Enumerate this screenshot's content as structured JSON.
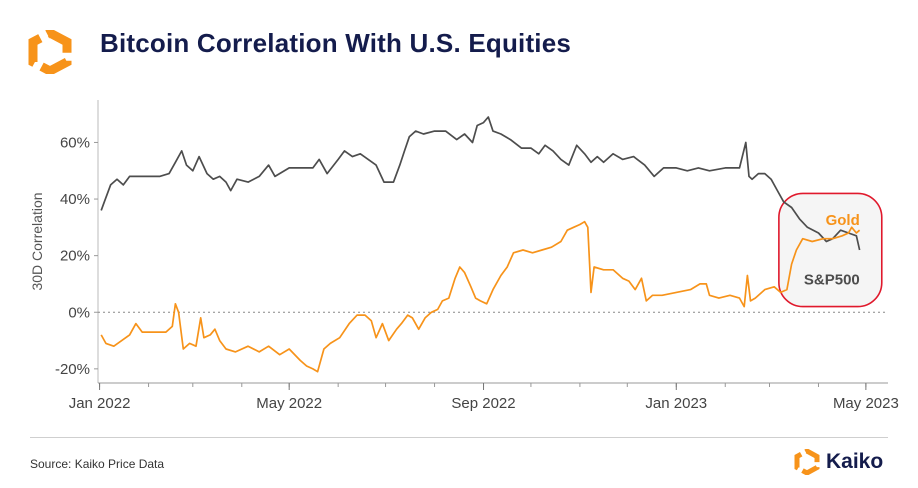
{
  "header": {
    "title": "Bitcoin Correlation With U.S. Equities"
  },
  "footer": {
    "source": "Source: Kaiko Price Data",
    "brand": "Kaiko"
  },
  "colors": {
    "sp500": "#4d4d4d",
    "gold": "#f7931a",
    "highlight": "#e0192c",
    "title": "#141c4c"
  },
  "chart_data": {
    "type": "line",
    "title": "Bitcoin Correlation With U.S. Equities",
    "ylabel": "30D Correlation",
    "xlabel": "",
    "ylim": [
      -25,
      75
    ],
    "xlim": [
      "2021-12-31",
      "2023-05-15"
    ],
    "yticks": [
      -20,
      0,
      20,
      40,
      60
    ],
    "ytick_labels": [
      "-20%",
      "0%",
      "20%",
      "40%",
      "60%"
    ],
    "xticks": [
      "2022-01-01",
      "2022-05-01",
      "2022-09-01",
      "2023-01-01",
      "2023-05-01"
    ],
    "xtick_labels": [
      "Jan 2022",
      "May 2022",
      "Sep 2022",
      "Jan 2023",
      "May 2023"
    ],
    "zero_line": "dotted",
    "series": [
      {
        "name": "S&P500",
        "color": "#4d4d4d",
        "points": [
          [
            "2022-01-02",
            36
          ],
          [
            "2022-01-04",
            39
          ],
          [
            "2022-01-08",
            45
          ],
          [
            "2022-01-12",
            47
          ],
          [
            "2022-01-16",
            45
          ],
          [
            "2022-01-20",
            48
          ],
          [
            "2022-01-25",
            48
          ],
          [
            "2022-02-01",
            48
          ],
          [
            "2022-02-08",
            48
          ],
          [
            "2022-02-14",
            49
          ],
          [
            "2022-02-18",
            53
          ],
          [
            "2022-02-22",
            57
          ],
          [
            "2022-02-25",
            52
          ],
          [
            "2022-03-01",
            50
          ],
          [
            "2022-03-05",
            55
          ],
          [
            "2022-03-10",
            49
          ],
          [
            "2022-03-14",
            47
          ],
          [
            "2022-03-18",
            48
          ],
          [
            "2022-03-22",
            46
          ],
          [
            "2022-03-25",
            43
          ],
          [
            "2022-03-29",
            47
          ],
          [
            "2022-04-05",
            46
          ],
          [
            "2022-04-12",
            48
          ],
          [
            "2022-04-18",
            52
          ],
          [
            "2022-04-22",
            48
          ],
          [
            "2022-05-01",
            51
          ],
          [
            "2022-05-10",
            51
          ],
          [
            "2022-05-16",
            51
          ],
          [
            "2022-05-20",
            54
          ],
          [
            "2022-05-25",
            49
          ],
          [
            "2022-06-01",
            54
          ],
          [
            "2022-06-05",
            57
          ],
          [
            "2022-06-10",
            55
          ],
          [
            "2022-06-15",
            56
          ],
          [
            "2022-06-20",
            54
          ],
          [
            "2022-06-25",
            52
          ],
          [
            "2022-06-30",
            46
          ],
          [
            "2022-07-06",
            46
          ],
          [
            "2022-07-10",
            52
          ],
          [
            "2022-07-13",
            57
          ],
          [
            "2022-07-16",
            62
          ],
          [
            "2022-07-20",
            64
          ],
          [
            "2022-07-25",
            63
          ],
          [
            "2022-08-01",
            64
          ],
          [
            "2022-08-08",
            64
          ],
          [
            "2022-08-15",
            61
          ],
          [
            "2022-08-20",
            63
          ],
          [
            "2022-08-25",
            60
          ],
          [
            "2022-08-28",
            66
          ],
          [
            "2022-09-01",
            67
          ],
          [
            "2022-09-04",
            69
          ],
          [
            "2022-09-07",
            64
          ],
          [
            "2022-09-12",
            63
          ],
          [
            "2022-09-18",
            61
          ],
          [
            "2022-09-25",
            58
          ],
          [
            "2022-10-01",
            58
          ],
          [
            "2022-10-06",
            56
          ],
          [
            "2022-10-10",
            59
          ],
          [
            "2022-10-15",
            57
          ],
          [
            "2022-10-20",
            54
          ],
          [
            "2022-10-25",
            52
          ],
          [
            "2022-10-30",
            59
          ],
          [
            "2022-11-04",
            56
          ],
          [
            "2022-11-08",
            53
          ],
          [
            "2022-11-12",
            55
          ],
          [
            "2022-11-16",
            53
          ],
          [
            "2022-11-22",
            56
          ],
          [
            "2022-11-28",
            54
          ],
          [
            "2022-12-05",
            55
          ],
          [
            "2022-12-12",
            52
          ],
          [
            "2022-12-18",
            48
          ],
          [
            "2022-12-24",
            51
          ],
          [
            "2023-01-01",
            51
          ],
          [
            "2023-01-08",
            50
          ],
          [
            "2023-01-15",
            51
          ],
          [
            "2023-01-22",
            50
          ],
          [
            "2023-02-01",
            51
          ],
          [
            "2023-02-10",
            51
          ],
          [
            "2023-02-14",
            60
          ],
          [
            "2023-02-16",
            48
          ],
          [
            "2023-02-18",
            47
          ],
          [
            "2023-02-22",
            49
          ],
          [
            "2023-02-26",
            49
          ],
          [
            "2023-03-02",
            47
          ],
          [
            "2023-03-06",
            43
          ],
          [
            "2023-03-10",
            39
          ],
          [
            "2023-03-15",
            37
          ],
          [
            "2023-03-20",
            33
          ],
          [
            "2023-03-25",
            30
          ],
          [
            "2023-04-01",
            28
          ],
          [
            "2023-04-06",
            25
          ],
          [
            "2023-04-10",
            26
          ],
          [
            "2023-04-15",
            29
          ],
          [
            "2023-04-20",
            28
          ],
          [
            "2023-04-25",
            27
          ],
          [
            "2023-04-27",
            22
          ]
        ]
      },
      {
        "name": "Gold",
        "color": "#f7931a",
        "points": [
          [
            "2022-01-02",
            -8
          ],
          [
            "2022-01-05",
            -11
          ],
          [
            "2022-01-10",
            -12
          ],
          [
            "2022-01-15",
            -10
          ],
          [
            "2022-01-20",
            -8
          ],
          [
            "2022-01-24",
            -4
          ],
          [
            "2022-01-28",
            -7
          ],
          [
            "2022-02-05",
            -7
          ],
          [
            "2022-02-12",
            -7
          ],
          [
            "2022-02-16",
            -5
          ],
          [
            "2022-02-18",
            3
          ],
          [
            "2022-02-20",
            0
          ],
          [
            "2022-02-23",
            -13
          ],
          [
            "2022-02-27",
            -11
          ],
          [
            "2022-03-03",
            -12
          ],
          [
            "2022-03-06",
            -2
          ],
          [
            "2022-03-08",
            -9
          ],
          [
            "2022-03-12",
            -8
          ],
          [
            "2022-03-15",
            -6
          ],
          [
            "2022-03-18",
            -10
          ],
          [
            "2022-03-22",
            -13
          ],
          [
            "2022-03-28",
            -14
          ],
          [
            "2022-04-05",
            -12
          ],
          [
            "2022-04-12",
            -14
          ],
          [
            "2022-04-18",
            -12
          ],
          [
            "2022-04-25",
            -15
          ],
          [
            "2022-05-01",
            -13
          ],
          [
            "2022-05-08",
            -17
          ],
          [
            "2022-05-12",
            -19
          ],
          [
            "2022-05-16",
            -20
          ],
          [
            "2022-05-19",
            -21
          ],
          [
            "2022-05-23",
            -13
          ],
          [
            "2022-05-27",
            -11
          ],
          [
            "2022-06-02",
            -9
          ],
          [
            "2022-06-08",
            -4
          ],
          [
            "2022-06-13",
            -1
          ],
          [
            "2022-06-18",
            -1
          ],
          [
            "2022-06-22",
            -3
          ],
          [
            "2022-06-25",
            -9
          ],
          [
            "2022-06-29",
            -4
          ],
          [
            "2022-07-03",
            -10
          ],
          [
            "2022-07-08",
            -6
          ],
          [
            "2022-07-11",
            -4
          ],
          [
            "2022-07-15",
            -1
          ],
          [
            "2022-07-18",
            -2
          ],
          [
            "2022-07-22",
            -6
          ],
          [
            "2022-07-26",
            -2
          ],
          [
            "2022-07-30",
            0
          ],
          [
            "2022-08-03",
            1
          ],
          [
            "2022-08-06",
            4
          ],
          [
            "2022-08-10",
            5
          ],
          [
            "2022-08-14",
            12
          ],
          [
            "2022-08-17",
            16
          ],
          [
            "2022-08-20",
            14
          ],
          [
            "2022-08-24",
            9
          ],
          [
            "2022-08-27",
            5
          ],
          [
            "2022-08-30",
            4
          ],
          [
            "2022-09-03",
            3
          ],
          [
            "2022-09-07",
            8
          ],
          [
            "2022-09-12",
            13
          ],
          [
            "2022-09-16",
            16
          ],
          [
            "2022-09-20",
            21
          ],
          [
            "2022-09-26",
            22
          ],
          [
            "2022-10-02",
            21
          ],
          [
            "2022-10-08",
            22
          ],
          [
            "2022-10-14",
            23
          ],
          [
            "2022-10-20",
            25
          ],
          [
            "2022-10-24",
            29
          ],
          [
            "2022-10-28",
            30
          ],
          [
            "2022-11-01",
            31
          ],
          [
            "2022-11-04",
            32
          ],
          [
            "2022-11-06",
            30
          ],
          [
            "2022-11-08",
            7
          ],
          [
            "2022-11-10",
            16
          ],
          [
            "2022-11-16",
            15
          ],
          [
            "2022-11-22",
            15
          ],
          [
            "2022-11-28",
            12
          ],
          [
            "2022-12-02",
            11
          ],
          [
            "2022-12-06",
            8
          ],
          [
            "2022-12-10",
            12
          ],
          [
            "2022-12-13",
            4
          ],
          [
            "2022-12-17",
            6
          ],
          [
            "2022-12-23",
            6
          ],
          [
            "2023-01-01",
            7
          ],
          [
            "2023-01-10",
            8
          ],
          [
            "2023-01-16",
            10
          ],
          [
            "2023-01-20",
            10
          ],
          [
            "2023-01-22",
            6
          ],
          [
            "2023-01-28",
            5
          ],
          [
            "2023-02-04",
            6
          ],
          [
            "2023-02-10",
            5
          ],
          [
            "2023-02-13",
            2
          ],
          [
            "2023-02-15",
            13
          ],
          [
            "2023-02-17",
            4
          ],
          [
            "2023-02-20",
            5
          ],
          [
            "2023-02-26",
            8
          ],
          [
            "2023-03-04",
            9
          ],
          [
            "2023-03-08",
            7
          ],
          [
            "2023-03-12",
            8
          ],
          [
            "2023-03-15",
            17
          ],
          [
            "2023-03-18",
            22
          ],
          [
            "2023-03-22",
            26
          ],
          [
            "2023-03-28",
            25
          ],
          [
            "2023-04-04",
            26
          ],
          [
            "2023-04-10",
            26
          ],
          [
            "2023-04-16",
            27
          ],
          [
            "2023-04-20",
            28
          ],
          [
            "2023-04-22",
            30
          ],
          [
            "2023-04-25",
            28
          ],
          [
            "2023-04-27",
            29
          ]
        ]
      }
    ],
    "annotations": [
      {
        "text": "Gold",
        "series": "Gold"
      },
      {
        "text": "S&P500",
        "series": "S&P500"
      }
    ],
    "highlight": {
      "x_range": [
        "2023-03-12",
        "2023-05-06"
      ],
      "y_range": [
        2,
        42
      ]
    }
  }
}
